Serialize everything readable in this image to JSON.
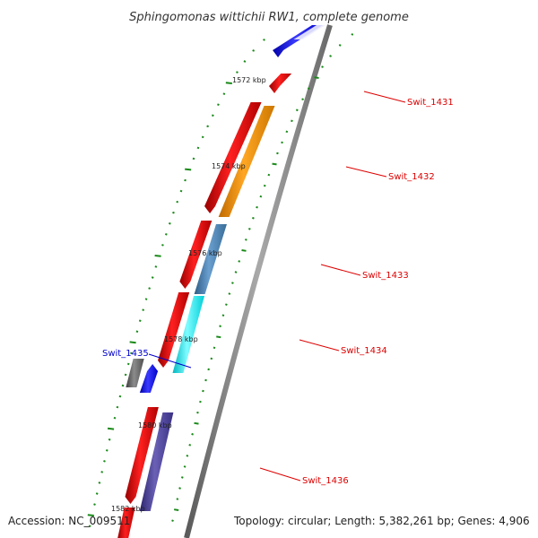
{
  "title": "Sphingomonas wittichii RW1, complete genome",
  "footer": {
    "accession": "Accession: NC_009511",
    "summary": "Topology: circular; Length: 5,382,261 bp; Genes: 4,906"
  },
  "colors": {
    "backbone": "#808080",
    "tick": "#1a8a1a",
    "label_red": "#dd0000",
    "label_blue": "#0000cc"
  },
  "ruler": [
    "1572 kbp",
    "1574 kbp",
    "1576 kbp",
    "1578 kbp",
    "1580 kbp",
    "1582 kbp"
  ],
  "genes": [
    {
      "label": "Swit_1431",
      "color": "#dd0000"
    },
    {
      "label": "Swit_1432",
      "color": "#dd0000"
    },
    {
      "label": "Swit_1433",
      "color": "#dd0000"
    },
    {
      "label": "Swit_1434",
      "color": "#dd0000"
    },
    {
      "label": "Swit_1435",
      "color": "#0000cc"
    },
    {
      "label": "Swit_1436",
      "color": "#dd0000"
    }
  ],
  "feature_colors": {
    "red": "#ff0000",
    "orange": "#ff9900",
    "steelblue": "#4682b4",
    "cyan": "#00ffff",
    "slate": "#483d8b",
    "gray": "#666666",
    "blue": "#0000ff"
  }
}
